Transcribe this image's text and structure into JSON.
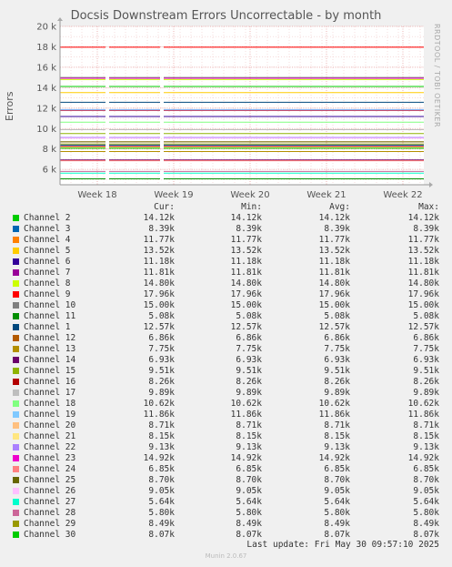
{
  "chart_data": {
    "type": "line",
    "title": "Docsis Downstream Errors Uncorrectable - by month",
    "ylabel": "Errors",
    "watermark": "RRDTOOL / TOBI OETIKER",
    "ylim": [
      4500,
      20000
    ],
    "y_ticks": [
      6000,
      8000,
      10000,
      12000,
      14000,
      16000,
      18000,
      20000
    ],
    "y_tick_labels": [
      "6 k",
      "8 k",
      "10 k",
      "12 k",
      "14 k",
      "16 k",
      "18 k",
      "20 k"
    ],
    "x_tick_labels": [
      "Week 18",
      "Week 19",
      "Week 20",
      "Week 21",
      "Week 22"
    ],
    "grid": true,
    "legend_columns": [
      "Cur:",
      "Min:",
      "Avg:",
      "Max:"
    ],
    "series": [
      {
        "name": "Channel 2",
        "color": "#00cc00",
        "value": 14120,
        "cur": "14.12k",
        "min": "14.12k",
        "avg": "14.12k",
        "max": "14.12k"
      },
      {
        "name": "Channel 3",
        "color": "#0066b3",
        "value": 8390,
        "cur": "8.39k",
        "min": "8.39k",
        "avg": "8.39k",
        "max": "8.39k"
      },
      {
        "name": "Channel 4",
        "color": "#ff8000",
        "value": 11770,
        "cur": "11.77k",
        "min": "11.77k",
        "avg": "11.77k",
        "max": "11.77k"
      },
      {
        "name": "Channel 5",
        "color": "#ffcc00",
        "value": 13520,
        "cur": "13.52k",
        "min": "13.52k",
        "avg": "13.52k",
        "max": "13.52k"
      },
      {
        "name": "Channel 6",
        "color": "#330099",
        "value": 11180,
        "cur": "11.18k",
        "min": "11.18k",
        "avg": "11.18k",
        "max": "11.18k"
      },
      {
        "name": "Channel 7",
        "color": "#990099",
        "value": 11810,
        "cur": "11.81k",
        "min": "11.81k",
        "avg": "11.81k",
        "max": "11.81k"
      },
      {
        "name": "Channel 8",
        "color": "#ccff00",
        "value": 14800,
        "cur": "14.80k",
        "min": "14.80k",
        "avg": "14.80k",
        "max": "14.80k"
      },
      {
        "name": "Channel 9",
        "color": "#ff0000",
        "value": 17960,
        "cur": "17.96k",
        "min": "17.96k",
        "avg": "17.96k",
        "max": "17.96k"
      },
      {
        "name": "Channel 10",
        "color": "#808080",
        "value": 15000,
        "cur": "15.00k",
        "min": "15.00k",
        "avg": "15.00k",
        "max": "15.00k"
      },
      {
        "name": "Channel 11",
        "color": "#008f00",
        "value": 5080,
        "cur": "5.08k",
        "min": "5.08k",
        "avg": "5.08k",
        "max": "5.08k"
      },
      {
        "name": "Channel 1",
        "color": "#00487d",
        "value": 12570,
        "cur": "12.57k",
        "min": "12.57k",
        "avg": "12.57k",
        "max": "12.57k"
      },
      {
        "name": "Channel 12",
        "color": "#b35a00",
        "value": 6860,
        "cur": "6.86k",
        "min": "6.86k",
        "avg": "6.86k",
        "max": "6.86k"
      },
      {
        "name": "Channel 13",
        "color": "#b38f00",
        "value": 7750,
        "cur": "7.75k",
        "min": "7.75k",
        "avg": "7.75k",
        "max": "7.75k"
      },
      {
        "name": "Channel 14",
        "color": "#6b006b",
        "value": 6930,
        "cur": "6.93k",
        "min": "6.93k",
        "avg": "6.93k",
        "max": "6.93k"
      },
      {
        "name": "Channel 15",
        "color": "#8fb300",
        "value": 9510,
        "cur": "9.51k",
        "min": "9.51k",
        "avg": "9.51k",
        "max": "9.51k"
      },
      {
        "name": "Channel 16",
        "color": "#b30000",
        "value": 8260,
        "cur": "8.26k",
        "min": "8.26k",
        "avg": "8.26k",
        "max": "8.26k"
      },
      {
        "name": "Channel 17",
        "color": "#bebebe",
        "value": 9890,
        "cur": "9.89k",
        "min": "9.89k",
        "avg": "9.89k",
        "max": "9.89k"
      },
      {
        "name": "Channel 18",
        "color": "#80ff80",
        "value": 10620,
        "cur": "10.62k",
        "min": "10.62k",
        "avg": "10.62k",
        "max": "10.62k"
      },
      {
        "name": "Channel 19",
        "color": "#80c9ff",
        "value": 11860,
        "cur": "11.86k",
        "min": "11.86k",
        "avg": "11.86k",
        "max": "11.86k"
      },
      {
        "name": "Channel 20",
        "color": "#ffc080",
        "value": 8710,
        "cur": "8.71k",
        "min": "8.71k",
        "avg": "8.71k",
        "max": "8.71k"
      },
      {
        "name": "Channel 21",
        "color": "#ffe680",
        "value": 8150,
        "cur": "8.15k",
        "min": "8.15k",
        "avg": "8.15k",
        "max": "8.15k"
      },
      {
        "name": "Channel 22",
        "color": "#aa80ff",
        "value": 9130,
        "cur": "9.13k",
        "min": "9.13k",
        "avg": "9.13k",
        "max": "9.13k"
      },
      {
        "name": "Channel 23",
        "color": "#ee00cc",
        "value": 14920,
        "cur": "14.92k",
        "min": "14.92k",
        "avg": "14.92k",
        "max": "14.92k"
      },
      {
        "name": "Channel 24",
        "color": "#ff8080",
        "value": 6850,
        "cur": "6.85k",
        "min": "6.85k",
        "avg": "6.85k",
        "max": "6.85k"
      },
      {
        "name": "Channel 25",
        "color": "#666600",
        "value": 8700,
        "cur": "8.70k",
        "min": "8.70k",
        "avg": "8.70k",
        "max": "8.70k"
      },
      {
        "name": "Channel 26",
        "color": "#ffbfff",
        "value": 9050,
        "cur": "9.05k",
        "min": "9.05k",
        "avg": "9.05k",
        "max": "9.05k"
      },
      {
        "name": "Channel 27",
        "color": "#00ffcc",
        "value": 5640,
        "cur": "5.64k",
        "min": "5.64k",
        "avg": "5.64k",
        "max": "5.64k"
      },
      {
        "name": "Channel 28",
        "color": "#cc6699",
        "value": 5800,
        "cur": "5.80k",
        "min": "5.80k",
        "avg": "5.80k",
        "max": "5.80k"
      },
      {
        "name": "Channel 29",
        "color": "#999900",
        "value": 8490,
        "cur": "8.49k",
        "min": "8.49k",
        "avg": "8.49k",
        "max": "8.49k"
      },
      {
        "name": "Channel 30",
        "color": "#00cc00",
        "value": 8070,
        "cur": "8.07k",
        "min": "8.07k",
        "avg": "8.07k",
        "max": "8.07k"
      }
    ]
  },
  "last_update": "Last update: Fri May 30 09:57:10 2025",
  "footer": "Munin 2.0.67"
}
